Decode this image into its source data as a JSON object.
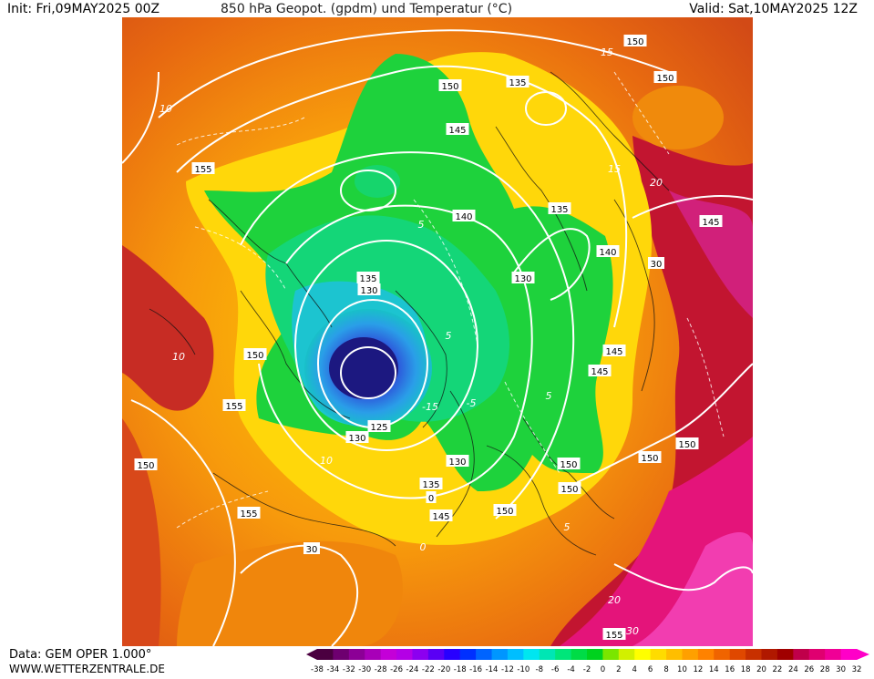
{
  "header": {
    "init": "Init: Fri,09MAY2025 00Z",
    "title": "850 hPa Geopot. (gpdm) und Temperatur (°C)",
    "valid": "Valid: Sat,10MAY2025 12Z"
  },
  "footer": {
    "source": "Data: GEM OPER 1.000°",
    "website": "WWW.WETTERZENTRALE.DE"
  },
  "legend": {
    "ticks": [
      "-38",
      "-34",
      "-32",
      "-30",
      "-28",
      "-26",
      "-24",
      "-22",
      "-20",
      "-18",
      "-16",
      "-14",
      "-12",
      "-10",
      "-8",
      "-6",
      "-4",
      "-2",
      "0",
      "2",
      "4",
      "6",
      "8",
      "10",
      "12",
      "14",
      "16",
      "18",
      "20",
      "22",
      "24",
      "26",
      "28",
      "30",
      "32"
    ],
    "colors": [
      "#4b0040",
      "#6e0070",
      "#8c0096",
      "#a800b8",
      "#c400d8",
      "#b400e6",
      "#8c00f0",
      "#5a00f5",
      "#2800ff",
      "#0030ff",
      "#0064ff",
      "#0096ff",
      "#00beff",
      "#00e6f0",
      "#00e6b4",
      "#00e67a",
      "#00dc46",
      "#00d21e",
      "#7ae600",
      "#d2f000",
      "#ffff00",
      "#ffdc00",
      "#ffbe00",
      "#ffa000",
      "#ff8200",
      "#f06400",
      "#e04800",
      "#c83000",
      "#b01800",
      "#a00000",
      "#c0004a",
      "#e00070",
      "#f00096",
      "#ff00c8"
    ]
  },
  "map": {
    "geopotential_labels": [
      "150",
      "150",
      "135",
      "150",
      "145",
      "155",
      "140",
      "135",
      "140",
      "135",
      "130",
      "130",
      "145",
      "145",
      "150",
      "155",
      "125",
      "130",
      "150",
      "130",
      "135",
      "0",
      "145",
      "150",
      "150",
      "150",
      "150",
      "150",
      "155",
      "30",
      "30",
      "145",
      "155"
    ],
    "temperature_labels": [
      "10",
      "10",
      "15",
      "5",
      "-5",
      "-15",
      "5",
      "5",
      "15",
      "5",
      "0",
      "10",
      "20",
      "20",
      "30"
    ]
  }
}
